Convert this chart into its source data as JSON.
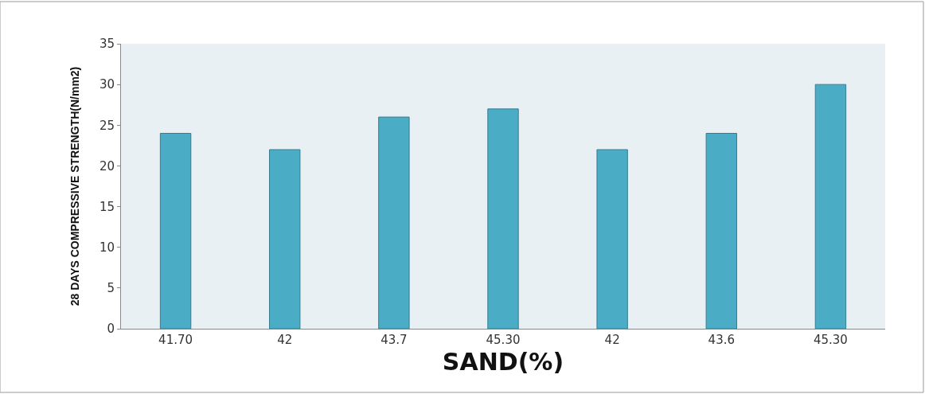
{
  "chart_data": {
    "type": "bar",
    "xlabel": "SAND(%)",
    "ylabel": "28 DAYS COMPRESSIVE STRENGTH(N/mm2)",
    "categories": [
      "41.70",
      "42",
      "43.7",
      "45.30",
      "42",
      "43.6",
      "45.30"
    ],
    "values": [
      24,
      22,
      26,
      27,
      22,
      24,
      30
    ],
    "color": "#4bacc6",
    "ylim": [
      0,
      35
    ],
    "yticks": [
      0,
      5,
      10,
      15,
      20,
      25,
      30,
      35
    ],
    "grid": false
  }
}
